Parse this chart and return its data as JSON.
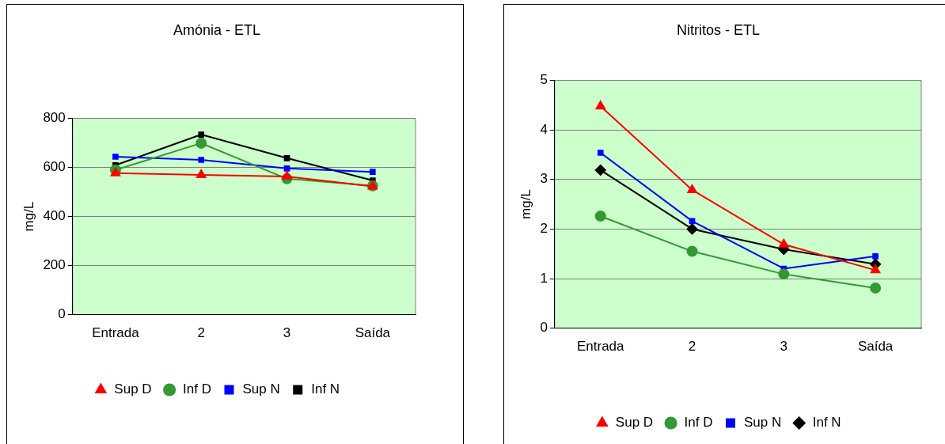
{
  "chart_data": [
    {
      "type": "line",
      "title": "Amónia - ETL",
      "ylabel": "mg/L",
      "categories": [
        "Entrada",
        "2",
        "3",
        "Saída"
      ],
      "ylim": [
        0,
        800
      ],
      "yticks": [
        0,
        200,
        400,
        600,
        800
      ],
      "grid": "y",
      "legend": "bottom",
      "series": [
        {
          "name": "Sup D",
          "color": "#ff0000",
          "marker": "triangle",
          "values": [
            577,
            570,
            563,
            523
          ]
        },
        {
          "name": "Inf D",
          "color": "#339933",
          "marker": "circle",
          "values": [
            590,
            699,
            554,
            525
          ]
        },
        {
          "name": "Sup N",
          "color": "#0000ff",
          "marker": "square",
          "values": [
            644,
            631,
            596,
            582
          ]
        },
        {
          "name": "Inf N",
          "color": "#000000",
          "marker": "square",
          "values": [
            609,
            734,
            638,
            547
          ]
        }
      ]
    },
    {
      "type": "line",
      "title": "Nitritos - ETL",
      "ylabel": "mg/L",
      "categories": [
        "Entrada",
        "2",
        "3",
        "Saída"
      ],
      "ylim": [
        0,
        5
      ],
      "yticks": [
        0,
        1,
        2,
        3,
        4,
        5
      ],
      "grid": "y",
      "legend": "bottom",
      "series": [
        {
          "name": "Sup D",
          "color": "#ff0000",
          "marker": "triangle",
          "values": [
            4.48,
            2.79,
            1.69,
            1.17
          ]
        },
        {
          "name": "Inf D",
          "color": "#339933",
          "marker": "circle",
          "values": [
            2.26,
            1.55,
            1.09,
            0.81
          ]
        },
        {
          "name": "Sup N",
          "color": "#0000ff",
          "marker": "square",
          "values": [
            3.54,
            2.16,
            1.2,
            1.45
          ]
        },
        {
          "name": "Inf N",
          "color": "#000000",
          "marker": "diamond",
          "values": [
            3.19,
            2.0,
            1.59,
            1.29
          ]
        }
      ]
    }
  ]
}
